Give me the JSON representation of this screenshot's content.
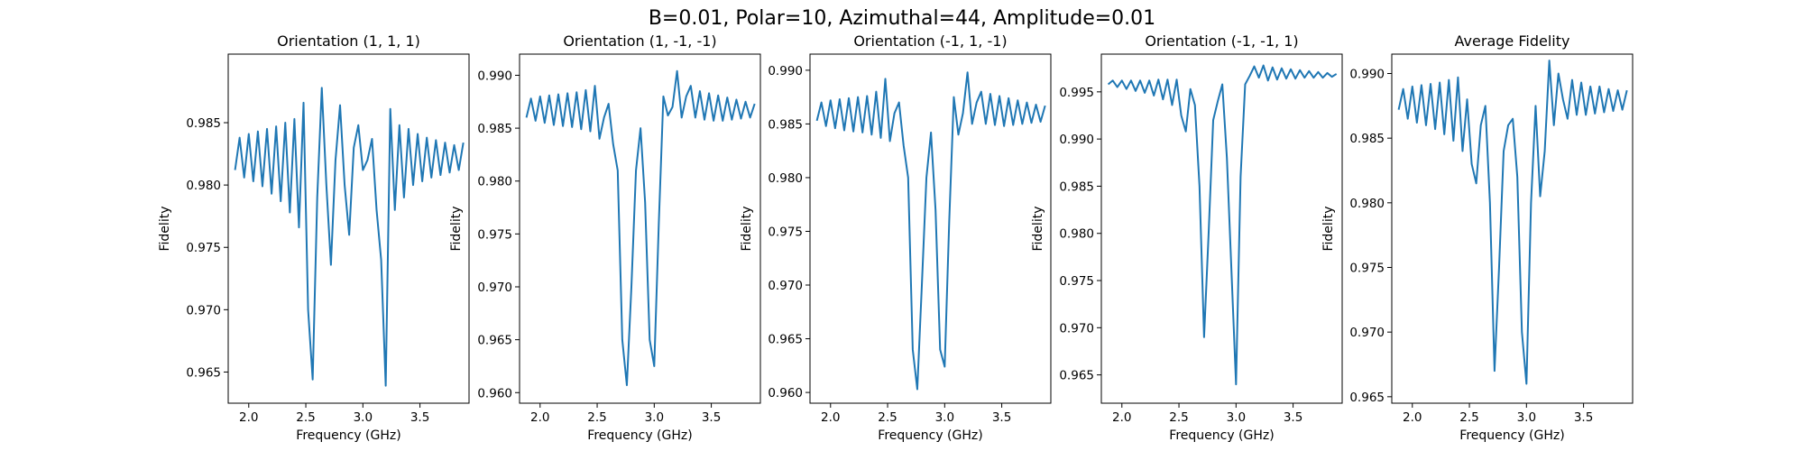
{
  "figure": {
    "suptitle": "B=0.01, Polar=10, Azimuthal=44, Amplitude=0.01"
  },
  "chart_data": [
    {
      "type": "line",
      "title": "Orientation (1, 1, 1)",
      "xlabel": "Frequency (GHz)",
      "ylabel": "Fidelity",
      "xlim": [
        1.82,
        3.93
      ],
      "ylim": [
        0.9625,
        0.9905
      ],
      "xticks": [
        2.0,
        2.5,
        3.0,
        3.5
      ],
      "xtick_labels": [
        "2.0",
        "2.5",
        "3.0",
        "3.5"
      ],
      "yticks": [
        0.965,
        0.97,
        0.975,
        0.98,
        0.985
      ],
      "ytick_labels": [
        "0.965",
        "0.970",
        "0.975",
        "0.980",
        "0.985"
      ],
      "line_color": "#1f77b4",
      "series": [
        {
          "x": [
            1.88,
            1.92,
            1.96,
            2.0,
            2.04,
            2.08,
            2.12,
            2.16,
            2.2,
            2.24,
            2.28,
            2.32,
            2.36,
            2.4,
            2.44,
            2.48,
            2.52,
            2.56,
            2.6,
            2.64,
            2.68,
            2.72,
            2.76,
            2.8,
            2.84,
            2.88,
            2.92,
            2.96,
            3.0,
            3.04,
            3.08,
            3.12,
            3.16,
            3.2,
            3.24,
            3.28,
            3.32,
            3.36,
            3.4,
            3.44,
            3.48,
            3.52,
            3.56,
            3.6,
            3.64,
            3.68,
            3.72,
            3.76,
            3.8,
            3.84,
            3.88
          ],
          "y": [
            0.9812,
            0.9838,
            0.9806,
            0.9841,
            0.9803,
            0.9843,
            0.9799,
            0.9845,
            0.9793,
            0.9847,
            0.9787,
            0.985,
            0.9778,
            0.9853,
            0.9766,
            0.9866,
            0.97,
            0.9644,
            0.979,
            0.9878,
            0.98,
            0.9736,
            0.982,
            0.9864,
            0.98,
            0.976,
            0.983,
            0.9848,
            0.9812,
            0.982,
            0.9837,
            0.978,
            0.974,
            0.9639,
            0.9861,
            0.978,
            0.9848,
            0.979,
            0.9845,
            0.98,
            0.9841,
            0.9803,
            0.9838,
            0.9806,
            0.9836,
            0.9808,
            0.9834,
            0.981,
            0.9832,
            0.9812,
            0.9834
          ]
        }
      ]
    },
    {
      "type": "line",
      "title": "Orientation (1, -1, -1)",
      "xlabel": "Frequency (GHz)",
      "ylabel": "Fidelity",
      "xlim": [
        1.82,
        3.93
      ],
      "ylim": [
        0.959,
        0.992
      ],
      "xticks": [
        2.0,
        2.5,
        3.0,
        3.5
      ],
      "xtick_labels": [
        "2.0",
        "2.5",
        "3.0",
        "3.5"
      ],
      "yticks": [
        0.96,
        0.965,
        0.97,
        0.975,
        0.98,
        0.985,
        0.99
      ],
      "ytick_labels": [
        "0.960",
        "0.965",
        "0.970",
        "0.975",
        "0.980",
        "0.985",
        "0.990"
      ],
      "line_color": "#1f77b4",
      "series": [
        {
          "x": [
            1.88,
            1.92,
            1.96,
            2.0,
            2.04,
            2.08,
            2.12,
            2.16,
            2.2,
            2.24,
            2.28,
            2.32,
            2.36,
            2.4,
            2.44,
            2.48,
            2.52,
            2.56,
            2.6,
            2.64,
            2.68,
            2.72,
            2.76,
            2.8,
            2.84,
            2.88,
            2.92,
            2.96,
            3.0,
            3.04,
            3.08,
            3.12,
            3.16,
            3.2,
            3.24,
            3.28,
            3.32,
            3.36,
            3.4,
            3.44,
            3.48,
            3.52,
            3.56,
            3.6,
            3.64,
            3.68,
            3.72,
            3.76,
            3.8,
            3.84,
            3.88
          ],
          "y": [
            0.986,
            0.9878,
            0.9857,
            0.988,
            0.9855,
            0.9881,
            0.9853,
            0.9882,
            0.9852,
            0.9883,
            0.9851,
            0.9884,
            0.9849,
            0.9886,
            0.9847,
            0.989,
            0.984,
            0.986,
            0.9873,
            0.9835,
            0.981,
            0.965,
            0.9607,
            0.97,
            0.981,
            0.985,
            0.978,
            0.965,
            0.9625,
            0.976,
            0.988,
            0.9862,
            0.987,
            0.9904,
            0.986,
            0.988,
            0.989,
            0.986,
            0.9885,
            0.9858,
            0.9883,
            0.9857,
            0.9881,
            0.9857,
            0.9879,
            0.9858,
            0.9877,
            0.9859,
            0.9875,
            0.986,
            0.9873
          ]
        }
      ]
    },
    {
      "type": "line",
      "title": "Orientation (-1, 1, -1)",
      "xlabel": "Frequency (GHz)",
      "ylabel": "Fidelity",
      "xlim": [
        1.82,
        3.93
      ],
      "ylim": [
        0.959,
        0.9915
      ],
      "xticks": [
        2.0,
        2.5,
        3.0,
        3.5
      ],
      "xtick_labels": [
        "2.0",
        "2.5",
        "3.0",
        "3.5"
      ],
      "yticks": [
        0.96,
        0.965,
        0.97,
        0.975,
        0.98,
        0.985,
        0.99
      ],
      "ytick_labels": [
        "0.960",
        "0.965",
        "0.970",
        "0.975",
        "0.980",
        "0.985",
        "0.990"
      ],
      "line_color": "#1f77b4",
      "series": [
        {
          "x": [
            1.88,
            1.92,
            1.96,
            2.0,
            2.04,
            2.08,
            2.12,
            2.16,
            2.2,
            2.24,
            2.28,
            2.32,
            2.36,
            2.4,
            2.44,
            2.48,
            2.52,
            2.56,
            2.6,
            2.64,
            2.68,
            2.72,
            2.76,
            2.8,
            2.84,
            2.88,
            2.92,
            2.96,
            3.0,
            3.04,
            3.08,
            3.12,
            3.16,
            3.2,
            3.24,
            3.28,
            3.32,
            3.36,
            3.4,
            3.44,
            3.48,
            3.52,
            3.56,
            3.6,
            3.64,
            3.68,
            3.72,
            3.76,
            3.8,
            3.84,
            3.88
          ],
          "y": [
            0.9853,
            0.987,
            0.9848,
            0.9872,
            0.9846,
            0.9873,
            0.9844,
            0.9874,
            0.9843,
            0.9875,
            0.9842,
            0.9876,
            0.984,
            0.988,
            0.9837,
            0.9892,
            0.9834,
            0.986,
            0.987,
            0.983,
            0.98,
            0.964,
            0.9603,
            0.97,
            0.98,
            0.9842,
            0.977,
            0.964,
            0.9624,
            0.976,
            0.9875,
            0.984,
            0.986,
            0.9898,
            0.985,
            0.987,
            0.988,
            0.985,
            0.9878,
            0.9849,
            0.9876,
            0.9848,
            0.9874,
            0.9849,
            0.9872,
            0.985,
            0.987,
            0.9851,
            0.9868,
            0.9852,
            0.9867
          ]
        }
      ]
    },
    {
      "type": "line",
      "title": "Orientation (-1, -1, 1)",
      "xlabel": "Frequency (GHz)",
      "ylabel": "Fidelity",
      "xlim": [
        1.82,
        3.93
      ],
      "ylim": [
        0.962,
        0.999
      ],
      "xticks": [
        2.0,
        2.5,
        3.0,
        3.5
      ],
      "xtick_labels": [
        "2.0",
        "2.5",
        "3.0",
        "3.5"
      ],
      "yticks": [
        0.965,
        0.97,
        0.975,
        0.98,
        0.985,
        0.99,
        0.995
      ],
      "ytick_labels": [
        "0.965",
        "0.970",
        "0.975",
        "0.980",
        "0.985",
        "0.990",
        "0.995"
      ],
      "line_color": "#1f77b4",
      "series": [
        {
          "x": [
            1.88,
            1.92,
            1.96,
            2.0,
            2.04,
            2.08,
            2.12,
            2.16,
            2.2,
            2.24,
            2.28,
            2.32,
            2.36,
            2.4,
            2.44,
            2.48,
            2.52,
            2.56,
            2.6,
            2.64,
            2.68,
            2.72,
            2.76,
            2.8,
            2.84,
            2.88,
            2.92,
            2.96,
            3.0,
            3.04,
            3.08,
            3.12,
            3.16,
            3.2,
            3.24,
            3.28,
            3.32,
            3.36,
            3.4,
            3.44,
            3.48,
            3.52,
            3.56,
            3.6,
            3.64,
            3.68,
            3.72,
            3.76,
            3.8,
            3.84,
            3.88
          ],
          "y": [
            0.9958,
            0.9962,
            0.9955,
            0.9962,
            0.9953,
            0.9962,
            0.9951,
            0.9962,
            0.9949,
            0.9962,
            0.9946,
            0.9963,
            0.9942,
            0.9963,
            0.9936,
            0.9963,
            0.9925,
            0.9908,
            0.9953,
            0.9936,
            0.985,
            0.969,
            0.98,
            0.992,
            0.994,
            0.9958,
            0.988,
            0.976,
            0.964,
            0.986,
            0.9958,
            0.9967,
            0.9977,
            0.9965,
            0.9978,
            0.9962,
            0.9976,
            0.9963,
            0.9975,
            0.9964,
            0.9974,
            0.9964,
            0.9973,
            0.9965,
            0.9972,
            0.9965,
            0.9971,
            0.9965,
            0.997,
            0.9966,
            0.9969
          ]
        }
      ]
    },
    {
      "type": "line",
      "title": "Average Fidelity",
      "xlabel": "Frequency (GHz)",
      "ylabel": "Fidelity",
      "xlim": [
        1.82,
        3.93
      ],
      "ylim": [
        0.9645,
        0.9915
      ],
      "xticks": [
        2.0,
        2.5,
        3.0,
        3.5
      ],
      "xtick_labels": [
        "2.0",
        "2.5",
        "3.0",
        "3.5"
      ],
      "yticks": [
        0.965,
        0.97,
        0.975,
        0.98,
        0.985,
        0.99
      ],
      "ytick_labels": [
        "0.965",
        "0.970",
        "0.975",
        "0.980",
        "0.985",
        "0.990"
      ],
      "line_color": "#1f77b4",
      "series": [
        {
          "x": [
            1.88,
            1.92,
            1.96,
            2.0,
            2.04,
            2.08,
            2.12,
            2.16,
            2.2,
            2.24,
            2.28,
            2.32,
            2.36,
            2.4,
            2.44,
            2.48,
            2.52,
            2.56,
            2.6,
            2.64,
            2.68,
            2.72,
            2.76,
            2.8,
            2.84,
            2.88,
            2.92,
            2.96,
            3.0,
            3.04,
            3.08,
            3.12,
            3.16,
            3.2,
            3.24,
            3.28,
            3.32,
            3.36,
            3.4,
            3.44,
            3.48,
            3.52,
            3.56,
            3.6,
            3.64,
            3.68,
            3.72,
            3.76,
            3.8,
            3.84,
            3.88
          ],
          "y": [
            0.9872,
            0.9888,
            0.9865,
            0.989,
            0.9862,
            0.9891,
            0.986,
            0.9892,
            0.9857,
            0.9893,
            0.9853,
            0.9895,
            0.9848,
            0.9897,
            0.984,
            0.988,
            0.983,
            0.9815,
            0.986,
            0.9875,
            0.98,
            0.967,
            0.975,
            0.984,
            0.986,
            0.9865,
            0.982,
            0.97,
            0.966,
            0.98,
            0.9875,
            0.9805,
            0.984,
            0.991,
            0.986,
            0.99,
            0.988,
            0.9865,
            0.9895,
            0.9868,
            0.9893,
            0.9868,
            0.989,
            0.9869,
            0.989,
            0.987,
            0.9888,
            0.9871,
            0.9887,
            0.9872,
            0.9887
          ]
        }
      ]
    }
  ]
}
